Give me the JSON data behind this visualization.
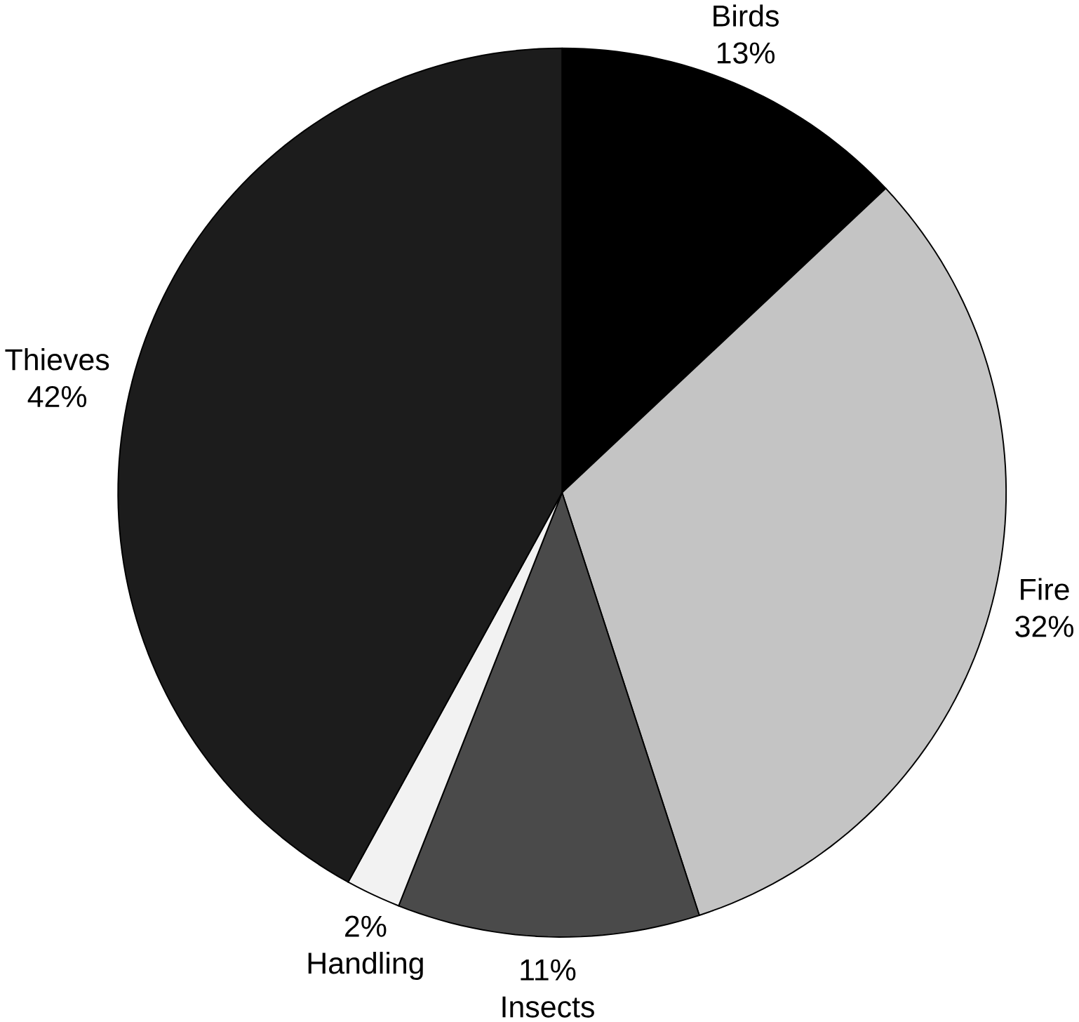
{
  "chart_data": {
    "type": "pie",
    "categories": [
      "Birds",
      "Fire",
      "Insects",
      "Handling",
      "Thieves"
    ],
    "values": [
      13,
      32,
      11,
      2,
      42
    ],
    "value_labels": [
      "13%",
      "32%",
      "11%",
      "2%",
      "42%"
    ],
    "colors": [
      "#000000",
      "#c4c4c4",
      "#4a4a4a",
      "#f2f2f2",
      "#1c1c1c"
    ]
  }
}
